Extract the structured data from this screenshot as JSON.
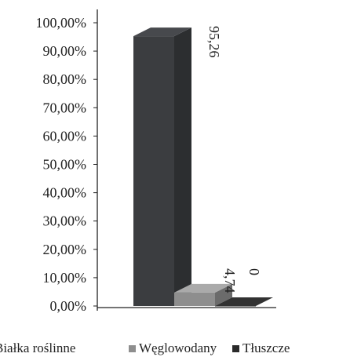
{
  "chart_data": {
    "type": "bar",
    "title": "",
    "xlabel": "",
    "ylabel": "",
    "ylim": [
      0,
      100
    ],
    "ytick_labels": [
      "0,00%",
      "10,00%",
      "20,00%",
      "30,00%",
      "40,00%",
      "50,00%",
      "60,00%",
      "70,00%",
      "80,00%",
      "90,00%",
      "100,00%"
    ],
    "ytick_values": [
      0,
      10,
      20,
      30,
      40,
      50,
      60,
      70,
      80,
      90,
      100
    ],
    "series": [
      {
        "name": "Białka roślinne",
        "value": 95.26,
        "label": "95,26",
        "color": "#3b3d40"
      },
      {
        "name": "Węglowodany",
        "value": 4.74,
        "label": "4,74",
        "color": "#8e8e8e"
      },
      {
        "name": "Tłuszcze",
        "value": 0,
        "label": "0",
        "color": "#2a2a2a"
      }
    ],
    "legend": {
      "position": "bottom"
    },
    "grid": false,
    "projection": "3d-perspective"
  }
}
